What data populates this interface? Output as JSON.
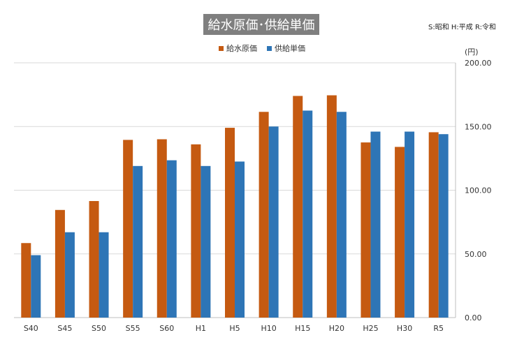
{
  "chart_data": {
    "type": "bar",
    "title": "給水原価･供給単価",
    "note": "S:昭和 H:平成 R:令和",
    "unit": "(円)",
    "categories": [
      "S40",
      "S45",
      "S50",
      "S55",
      "S60",
      "H1",
      "H5",
      "H10",
      "H15",
      "H20",
      "H25",
      "H30",
      "R5"
    ],
    "series": [
      {
        "name": "給水原価",
        "color": "#c55a11",
        "values": [
          58.5,
          84.5,
          91.5,
          139.5,
          140.0,
          136.0,
          149.0,
          161.5,
          174.0,
          174.5,
          137.5,
          134.0,
          145.5
        ]
      },
      {
        "name": "供給単価",
        "color": "#2e75b6",
        "values": [
          49.0,
          67.0,
          67.0,
          119.0,
          123.5,
          119.0,
          122.5,
          150.0,
          162.5,
          161.5,
          146.0,
          146.0,
          144.0
        ]
      }
    ],
    "ylim": [
      0,
      200
    ],
    "yticks": [
      "0.00",
      "50.00",
      "100.00",
      "150.00",
      "200.00"
    ],
    "y_axis_side": "right",
    "grid": true,
    "legend_position": "top"
  }
}
